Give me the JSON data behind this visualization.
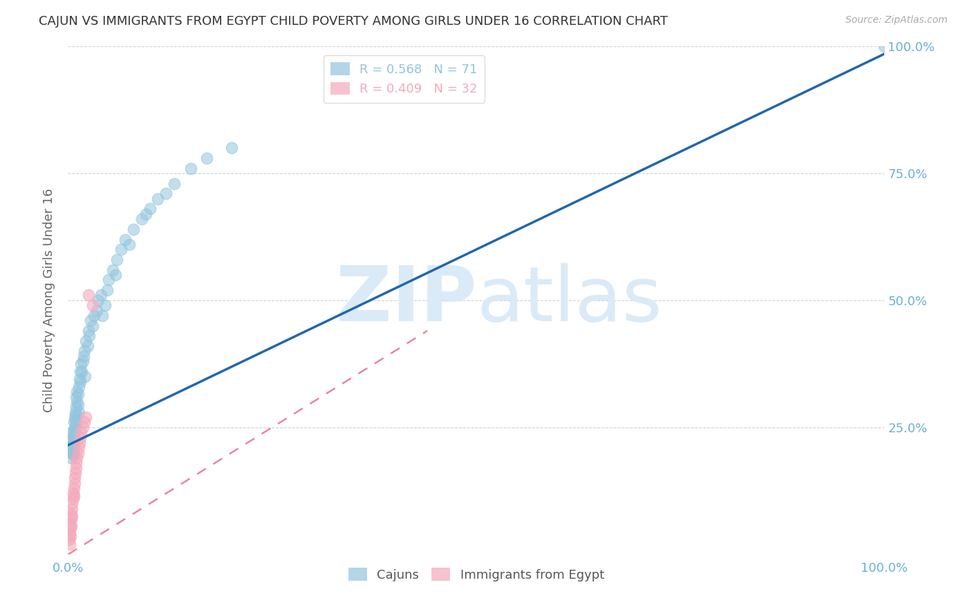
{
  "title": "CAJUN VS IMMIGRANTS FROM EGYPT CHILD POVERTY AMONG GIRLS UNDER 16 CORRELATION CHART",
  "source": "Source: ZipAtlas.com",
  "ylabel": "Child Poverty Among Girls Under 16",
  "watermark_zip": "ZIP",
  "watermark_atlas": "atlas",
  "xlim": [
    0,
    1.0
  ],
  "ylim": [
    0,
    1.0
  ],
  "cajun_color": "#92c5de",
  "egypt_color": "#f4a9bb",
  "cajun_line_color": "#2166ac",
  "egypt_line_color": "#e8708a",
  "tick_label_color": "#6aafd6",
  "grid_color": "#cccccc",
  "background_color": "#ffffff",
  "legend_label1": "R = 0.568   N = 71",
  "legend_label2": "R = 0.409   N = 32",
  "cajun_line_x0": 0.0,
  "cajun_line_y0": 0.215,
  "cajun_line_x1": 1.0,
  "cajun_line_y1": 0.985,
  "egypt_line_x0": 0.0,
  "egypt_line_y0": 0.0,
  "egypt_line_x1": 0.4,
  "egypt_line_y1": 0.44,
  "cajun_x": [
    0.003,
    0.004,
    0.004,
    0.005,
    0.005,
    0.005,
    0.005,
    0.006,
    0.006,
    0.006,
    0.006,
    0.007,
    0.007,
    0.007,
    0.007,
    0.008,
    0.008,
    0.008,
    0.009,
    0.009,
    0.009,
    0.01,
    0.01,
    0.01,
    0.01,
    0.011,
    0.011,
    0.012,
    0.012,
    0.013,
    0.013,
    0.014,
    0.015,
    0.015,
    0.016,
    0.017,
    0.018,
    0.019,
    0.02,
    0.021,
    0.022,
    0.024,
    0.025,
    0.026,
    0.028,
    0.03,
    0.032,
    0.035,
    0.037,
    0.04,
    0.042,
    0.045,
    0.048,
    0.05,
    0.055,
    0.058,
    0.06,
    0.065,
    0.07,
    0.075,
    0.08,
    0.09,
    0.095,
    0.1,
    0.11,
    0.12,
    0.13,
    0.15,
    0.17,
    0.2,
    1.0
  ],
  "cajun_y": [
    0.21,
    0.225,
    0.19,
    0.24,
    0.2,
    0.215,
    0.205,
    0.22,
    0.23,
    0.195,
    0.235,
    0.245,
    0.215,
    0.26,
    0.2,
    0.27,
    0.25,
    0.225,
    0.28,
    0.265,
    0.24,
    0.29,
    0.275,
    0.31,
    0.255,
    0.3,
    0.32,
    0.315,
    0.295,
    0.33,
    0.28,
    0.345,
    0.36,
    0.34,
    0.375,
    0.36,
    0.38,
    0.39,
    0.4,
    0.35,
    0.42,
    0.41,
    0.44,
    0.43,
    0.46,
    0.45,
    0.47,
    0.48,
    0.5,
    0.51,
    0.47,
    0.49,
    0.52,
    0.54,
    0.56,
    0.55,
    0.58,
    0.6,
    0.62,
    0.61,
    0.64,
    0.66,
    0.67,
    0.68,
    0.7,
    0.71,
    0.73,
    0.76,
    0.78,
    0.8,
    1.0
  ],
  "egypt_x": [
    0.001,
    0.002,
    0.002,
    0.003,
    0.003,
    0.003,
    0.004,
    0.004,
    0.004,
    0.005,
    0.005,
    0.005,
    0.006,
    0.006,
    0.007,
    0.007,
    0.008,
    0.008,
    0.009,
    0.01,
    0.01,
    0.011,
    0.012,
    0.013,
    0.014,
    0.015,
    0.016,
    0.018,
    0.02,
    0.022,
    0.025,
    0.03
  ],
  "egypt_y": [
    0.03,
    0.04,
    0.02,
    0.05,
    0.06,
    0.035,
    0.07,
    0.055,
    0.08,
    0.09,
    0.1,
    0.075,
    0.11,
    0.12,
    0.13,
    0.115,
    0.14,
    0.15,
    0.16,
    0.17,
    0.18,
    0.19,
    0.2,
    0.21,
    0.22,
    0.23,
    0.24,
    0.25,
    0.26,
    0.27,
    0.51,
    0.49
  ]
}
